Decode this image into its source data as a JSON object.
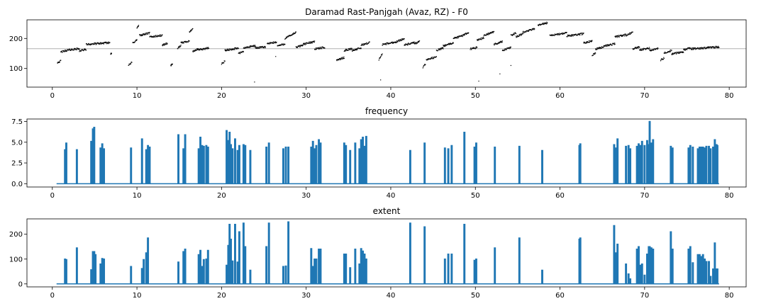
{
  "figure": {
    "background": "#ffffff",
    "series_color": "#1f77b4",
    "f0_color": "#000000",
    "refline_color": "#b0b0b0"
  },
  "chart_data": [
    {
      "type": "scatter",
      "title": "Daramad Rast-Panjgah (Avaz, RZ) - F0",
      "xlabel": "",
      "ylabel": "",
      "xlim": [
        -3,
        82
      ],
      "ylim": [
        38,
        262
      ],
      "xticks": [
        0,
        10,
        20,
        30,
        40,
        50,
        60,
        70,
        80
      ],
      "yticks": [
        100,
        200
      ],
      "reference_line": 166,
      "segments": [
        [
          0.6,
          1.0,
          120,
          125
        ],
        [
          1.0,
          2.0,
          155,
          162
        ],
        [
          2.0,
          3.2,
          162,
          166
        ],
        [
          3.2,
          4.0,
          158,
          164
        ],
        [
          4.0,
          6.8,
          180,
          186
        ],
        [
          6.9,
          7.0,
          150,
          152
        ],
        [
          9.0,
          9.4,
          110,
          120
        ],
        [
          9.5,
          10.0,
          185,
          195
        ],
        [
          10.0,
          10.2,
          235,
          242
        ],
        [
          10.3,
          11.5,
          210,
          218
        ],
        [
          11.5,
          13.0,
          205,
          210
        ],
        [
          13.0,
          13.6,
          178,
          184
        ],
        [
          14.0,
          14.2,
          110,
          114
        ],
        [
          14.8,
          15.2,
          168,
          175
        ],
        [
          15.2,
          16.2,
          185,
          192
        ],
        [
          16.2,
          16.6,
          220,
          234
        ],
        [
          16.6,
          17.2,
          155,
          165
        ],
        [
          17.2,
          18.5,
          162,
          168
        ],
        [
          20.0,
          20.4,
          115,
          125
        ],
        [
          20.4,
          22.0,
          160,
          168
        ],
        [
          22.0,
          22.6,
          150,
          156
        ],
        [
          22.6,
          24.0,
          168,
          176
        ],
        [
          24.0,
          25.2,
          168,
          172
        ],
        [
          25.4,
          26.5,
          182,
          188
        ],
        [
          26.6,
          27.5,
          175,
          182
        ],
        [
          27.5,
          28.8,
          200,
          220
        ],
        [
          28.8,
          29.6,
          170,
          178
        ],
        [
          29.6,
          31.0,
          180,
          190
        ],
        [
          31.0,
          32.2,
          165,
          170
        ],
        [
          33.6,
          34.5,
          128,
          136
        ],
        [
          34.5,
          35.4,
          160,
          166
        ],
        [
          35.4,
          36.5,
          160,
          168
        ],
        [
          36.5,
          37.5,
          178,
          186
        ],
        [
          38.6,
          39.0,
          130,
          148
        ],
        [
          39.0,
          40.6,
          180,
          188
        ],
        [
          40.6,
          41.6,
          188,
          200
        ],
        [
          41.6,
          42.8,
          178,
          186
        ],
        [
          42.8,
          43.4,
          182,
          190
        ],
        [
          43.8,
          44.1,
          104,
          114
        ],
        [
          44.2,
          45.4,
          130,
          138
        ],
        [
          45.4,
          46.2,
          160,
          168
        ],
        [
          46.2,
          47.4,
          175,
          185
        ],
        [
          47.4,
          48.6,
          200,
          210
        ],
        [
          48.6,
          49.2,
          212,
          220
        ],
        [
          49.4,
          50.2,
          165,
          170
        ],
        [
          50.2,
          51.0,
          195,
          202
        ],
        [
          51.0,
          52.2,
          210,
          222
        ],
        [
          52.2,
          53.2,
          180,
          190
        ],
        [
          53.2,
          54.2,
          160,
          170
        ],
        [
          54.2,
          54.8,
          210,
          218
        ],
        [
          54.8,
          55.6,
          205,
          215
        ],
        [
          55.6,
          57.0,
          220,
          232
        ],
        [
          57.4,
          58.5,
          245,
          252
        ],
        [
          58.8,
          60.8,
          210,
          218
        ],
        [
          60.8,
          62.8,
          208,
          216
        ],
        [
          62.8,
          63.8,
          185,
          192
        ],
        [
          63.8,
          64.2,
          145,
          152
        ],
        [
          64.2,
          65.2,
          165,
          172
        ],
        [
          65.2,
          66.5,
          175,
          182
        ],
        [
          66.5,
          67.8,
          205,
          212
        ],
        [
          67.8,
          68.6,
          210,
          220
        ],
        [
          68.6,
          69.4,
          165,
          172
        ],
        [
          69.4,
          70.6,
          162,
          168
        ],
        [
          70.6,
          71.6,
          160,
          166
        ],
        [
          71.9,
          72.3,
          128,
          135
        ],
        [
          72.3,
          73.2,
          152,
          160
        ],
        [
          73.2,
          74.6,
          148,
          156
        ],
        [
          74.6,
          75.4,
          162,
          168
        ],
        [
          75.4,
          78.8,
          165,
          172
        ]
      ],
      "outliers": [
        [
          23.9,
          55
        ],
        [
          50.4,
          58
        ],
        [
          52.9,
          82
        ],
        [
          54.2,
          110
        ],
        [
          38.8,
          62
        ],
        [
          26.4,
          140
        ]
      ]
    },
    {
      "type": "line",
      "title": "frequency",
      "xlabel": "",
      "ylabel": "",
      "xlim": [
        -3,
        82
      ],
      "ylim": [
        -0.4,
        7.8
      ],
      "xticks": [
        0,
        10,
        20,
        30,
        40,
        50,
        60,
        70,
        80
      ],
      "yticks": [
        0.0,
        2.5,
        5.0,
        7.5
      ],
      "yticklabels": [
        "0.0",
        "2.5",
        "5.0",
        "7.5"
      ],
      "x_start": 0.5,
      "x_end": 78.8,
      "peaks": [
        [
          1.5,
          4.1
        ],
        [
          1.65,
          4.9
        ],
        [
          2.9,
          4.1
        ],
        [
          4.6,
          5.1
        ],
        [
          4.8,
          6.6
        ],
        [
          4.95,
          6.8
        ],
        [
          5.7,
          4.3
        ],
        [
          5.9,
          4.8
        ],
        [
          6.1,
          4.2
        ],
        [
          9.3,
          4.3
        ],
        [
          10.6,
          5.4
        ],
        [
          11.1,
          4.1
        ],
        [
          11.3,
          4.6
        ],
        [
          11.5,
          4.4
        ],
        [
          14.9,
          5.9
        ],
        [
          15.5,
          4.2
        ],
        [
          15.7,
          5.9
        ],
        [
          17.3,
          4.2
        ],
        [
          17.5,
          5.6
        ],
        [
          17.7,
          4.6
        ],
        [
          17.9,
          4.5
        ],
        [
          18.2,
          4.6
        ],
        [
          18.4,
          4.4
        ],
        [
          20.6,
          6.4
        ],
        [
          20.8,
          5.2
        ],
        [
          20.95,
          6.2
        ],
        [
          21.1,
          4.7
        ],
        [
          21.3,
          4.2
        ],
        [
          21.6,
          5.4
        ],
        [
          21.9,
          4.0
        ],
        [
          22.1,
          4.6
        ],
        [
          22.6,
          4.7
        ],
        [
          22.8,
          4.6
        ],
        [
          23.4,
          4.0
        ],
        [
          25.3,
          4.4
        ],
        [
          25.6,
          4.9
        ],
        [
          27.3,
          4.2
        ],
        [
          27.6,
          4.4
        ],
        [
          27.9,
          4.4
        ],
        [
          30.6,
          4.4
        ],
        [
          30.8,
          5.1
        ],
        [
          31.0,
          4.2
        ],
        [
          31.2,
          4.6
        ],
        [
          31.5,
          5.3
        ],
        [
          31.7,
          4.9
        ],
        [
          34.5,
          4.9
        ],
        [
          34.7,
          4.6
        ],
        [
          35.2,
          4.0
        ],
        [
          35.8,
          4.9
        ],
        [
          36.3,
          4.2
        ],
        [
          36.5,
          5.3
        ],
        [
          36.7,
          5.6
        ],
        [
          36.9,
          4.5
        ],
        [
          37.1,
          5.7
        ],
        [
          42.3,
          4.0
        ],
        [
          44.0,
          4.9
        ],
        [
          46.4,
          4.3
        ],
        [
          46.8,
          4.2
        ],
        [
          47.2,
          4.6
        ],
        [
          48.7,
          6.2
        ],
        [
          49.9,
          4.4
        ],
        [
          50.1,
          4.9
        ],
        [
          52.3,
          4.4
        ],
        [
          55.2,
          4.5
        ],
        [
          57.9,
          4.0
        ],
        [
          62.3,
          4.6
        ],
        [
          62.4,
          4.8
        ],
        [
          66.4,
          4.7
        ],
        [
          66.6,
          4.3
        ],
        [
          66.8,
          5.4
        ],
        [
          67.8,
          4.5
        ],
        [
          68.1,
          4.6
        ],
        [
          68.3,
          4.2
        ],
        [
          69.1,
          4.5
        ],
        [
          69.3,
          4.8
        ],
        [
          69.5,
          4.6
        ],
        [
          69.7,
          5.1
        ],
        [
          70.0,
          4.6
        ],
        [
          70.3,
          5.2
        ],
        [
          70.5,
          4.7
        ],
        [
          70.6,
          7.5
        ],
        [
          70.8,
          4.9
        ],
        [
          71.0,
          5.3
        ],
        [
          73.1,
          4.5
        ],
        [
          73.3,
          4.3
        ],
        [
          75.2,
          4.3
        ],
        [
          75.4,
          4.6
        ],
        [
          75.7,
          4.4
        ],
        [
          76.3,
          4.2
        ],
        [
          76.5,
          4.4
        ],
        [
          76.7,
          4.4
        ],
        [
          76.9,
          4.4
        ],
        [
          77.1,
          4.3
        ],
        [
          77.3,
          4.5
        ],
        [
          77.6,
          4.5
        ],
        [
          77.8,
          4.2
        ],
        [
          78.1,
          4.4
        ],
        [
          78.3,
          5.3
        ],
        [
          78.5,
          4.7
        ],
        [
          78.6,
          4.6
        ]
      ]
    },
    {
      "type": "line",
      "title": "extent",
      "xlabel": "",
      "ylabel": "",
      "xlim": [
        -3,
        82
      ],
      "ylim": [
        -12,
        262
      ],
      "xticks": [
        0,
        10,
        20,
        30,
        40,
        50,
        60,
        70,
        80
      ],
      "yticks": [
        0,
        100,
        200
      ],
      "x_start": 0.5,
      "x_end": 78.8,
      "peaks": [
        [
          1.5,
          100
        ],
        [
          1.65,
          98
        ],
        [
          2.9,
          145
        ],
        [
          4.6,
          57
        ],
        [
          4.8,
          130
        ],
        [
          4.95,
          130
        ],
        [
          5.1,
          118
        ],
        [
          5.7,
          80
        ],
        [
          5.9,
          102
        ],
        [
          6.1,
          100
        ],
        [
          9.3,
          70
        ],
        [
          10.6,
          62
        ],
        [
          10.8,
          98
        ],
        [
          11.1,
          125
        ],
        [
          11.3,
          185
        ],
        [
          14.9,
          88
        ],
        [
          15.5,
          130
        ],
        [
          15.7,
          140
        ],
        [
          17.3,
          118
        ],
        [
          17.5,
          135
        ],
        [
          17.7,
          70
        ],
        [
          17.9,
          98
        ],
        [
          18.2,
          100
        ],
        [
          18.4,
          135
        ],
        [
          20.6,
          75
        ],
        [
          20.8,
          155
        ],
        [
          20.95,
          240
        ],
        [
          21.1,
          180
        ],
        [
          21.3,
          92
        ],
        [
          21.6,
          240
        ],
        [
          21.9,
          88
        ],
        [
          22.1,
          210
        ],
        [
          22.6,
          245
        ],
        [
          22.8,
          150
        ],
        [
          23.4,
          55
        ],
        [
          25.3,
          150
        ],
        [
          25.6,
          245
        ],
        [
          27.3,
          70
        ],
        [
          27.6,
          72
        ],
        [
          27.9,
          250
        ],
        [
          30.6,
          142
        ],
        [
          30.8,
          70
        ],
        [
          31.0,
          100
        ],
        [
          31.2,
          100
        ],
        [
          31.5,
          140
        ],
        [
          31.7,
          140
        ],
        [
          34.5,
          120
        ],
        [
          34.7,
          120
        ],
        [
          35.2,
          65
        ],
        [
          35.8,
          140
        ],
        [
          36.3,
          80
        ],
        [
          36.5,
          142
        ],
        [
          36.7,
          132
        ],
        [
          36.9,
          120
        ],
        [
          37.1,
          100
        ],
        [
          42.3,
          245
        ],
        [
          44.0,
          230
        ],
        [
          46.4,
          100
        ],
        [
          46.8,
          120
        ],
        [
          47.2,
          120
        ],
        [
          48.7,
          240
        ],
        [
          49.9,
          95
        ],
        [
          50.1,
          100
        ],
        [
          52.3,
          145
        ],
        [
          55.2,
          185
        ],
        [
          57.9,
          55
        ],
        [
          62.3,
          180
        ],
        [
          62.4,
          185
        ],
        [
          66.4,
          235
        ],
        [
          66.6,
          125
        ],
        [
          66.8,
          160
        ],
        [
          67.8,
          80
        ],
        [
          68.1,
          40
        ],
        [
          68.3,
          20
        ],
        [
          69.1,
          140
        ],
        [
          69.3,
          150
        ],
        [
          69.5,
          75
        ],
        [
          69.7,
          80
        ],
        [
          70.0,
          35
        ],
        [
          70.3,
          120
        ],
        [
          70.5,
          150
        ],
        [
          70.6,
          150
        ],
        [
          70.8,
          145
        ],
        [
          71.0,
          140
        ],
        [
          73.1,
          210
        ],
        [
          73.3,
          140
        ],
        [
          75.2,
          140
        ],
        [
          75.4,
          150
        ],
        [
          75.7,
          85
        ],
        [
          76.3,
          118
        ],
        [
          76.5,
          118
        ],
        [
          76.7,
          110
        ],
        [
          76.9,
          118
        ],
        [
          77.1,
          100
        ],
        [
          77.3,
          90
        ],
        [
          77.6,
          90
        ],
        [
          77.8,
          30
        ],
        [
          78.1,
          60
        ],
        [
          78.3,
          165
        ],
        [
          78.5,
          60
        ],
        [
          78.6,
          60
        ]
      ]
    }
  ]
}
